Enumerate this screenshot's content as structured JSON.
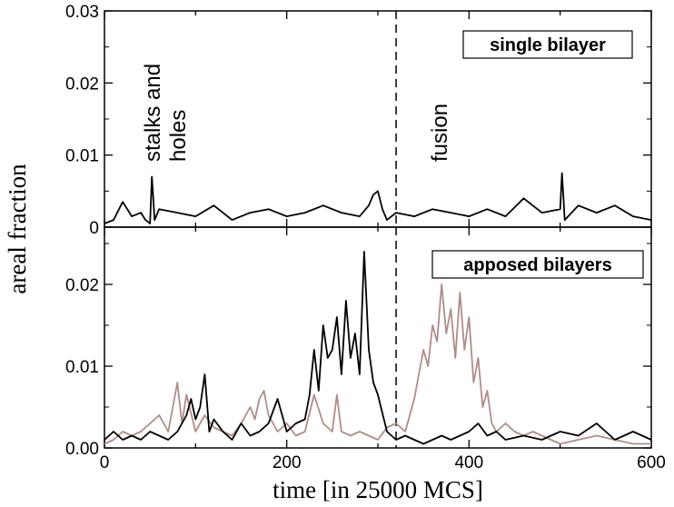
{
  "chart_data": [
    {
      "type": "line",
      "panel": "top",
      "label": "single bilayer",
      "ylim": [
        0,
        0.03
      ],
      "xlim": [
        0,
        600
      ],
      "yticks": [
        {
          "v": 0.03,
          "label": "0.03"
        },
        {
          "v": 0.02,
          "label": "0.02"
        },
        {
          "v": 0.01,
          "label": "0.01"
        },
        {
          "v": 0,
          "label": "0"
        }
      ],
      "annotations": [
        {
          "lines": [
            "stalks and",
            "holes"
          ],
          "x": 55
        },
        {
          "lines": [
            "fusion"
          ],
          "x": 370
        }
      ],
      "vline_x": 320,
      "series": [
        {
          "color": "#000000",
          "x": [
            0,
            10,
            20,
            30,
            40,
            45,
            50,
            52,
            55,
            60,
            80,
            100,
            120,
            140,
            160,
            180,
            200,
            220,
            240,
            260,
            280,
            290,
            295,
            300,
            305,
            310,
            320,
            340,
            360,
            380,
            400,
            420,
            440,
            460,
            480,
            500,
            502,
            505,
            520,
            540,
            560,
            580,
            600
          ],
          "y": [
            0.0005,
            0.001,
            0.0035,
            0.0015,
            0.002,
            0.001,
            0.0005,
            0.007,
            0.001,
            0.0025,
            0.002,
            0.0015,
            0.003,
            0.001,
            0.002,
            0.0025,
            0.0015,
            0.002,
            0.003,
            0.002,
            0.0015,
            0.003,
            0.0045,
            0.005,
            0.0025,
            0.001,
            0.002,
            0.0015,
            0.0025,
            0.002,
            0.0015,
            0.0025,
            0.0015,
            0.004,
            0.002,
            0.0025,
            0.0075,
            0.001,
            0.003,
            0.002,
            0.003,
            0.0015,
            0.001
          ]
        }
      ]
    },
    {
      "type": "line",
      "panel": "bottom",
      "label": "apposed bilayers",
      "ylim": [
        0,
        0.027
      ],
      "xlim": [
        0,
        600
      ],
      "xlabel": "time [in 25000 MCS]",
      "ylabel": "areal fraction",
      "xticks": [
        {
          "v": 0,
          "label": "0"
        },
        {
          "v": 200,
          "label": "200"
        },
        {
          "v": 400,
          "label": "400"
        },
        {
          "v": 600,
          "label": "600"
        }
      ],
      "yticks": [
        {
          "v": 0.02,
          "label": "0.02"
        },
        {
          "v": 0.01,
          "label": "0.01"
        },
        {
          "v": 0,
          "label": "0.00"
        }
      ],
      "vline_x": 320,
      "series": [
        {
          "color": "#b08c88",
          "x": [
            0,
            10,
            20,
            30,
            40,
            50,
            60,
            70,
            80,
            85,
            90,
            100,
            110,
            120,
            130,
            140,
            150,
            160,
            165,
            170,
            175,
            180,
            190,
            200,
            210,
            220,
            230,
            240,
            250,
            255,
            260,
            270,
            280,
            290,
            300,
            310,
            320,
            330,
            340,
            345,
            350,
            355,
            360,
            365,
            370,
            375,
            380,
            385,
            390,
            395,
            400,
            405,
            410,
            415,
            420,
            425,
            430,
            440,
            450,
            460,
            470,
            480,
            490,
            500,
            520,
            540,
            560,
            580,
            600
          ],
          "y": [
            0.0005,
            0.001,
            0.002,
            0.0015,
            0.002,
            0.003,
            0.004,
            0.002,
            0.008,
            0.003,
            0.0065,
            0.002,
            0.004,
            0.0025,
            0.002,
            0.0015,
            0.003,
            0.005,
            0.0035,
            0.006,
            0.007,
            0.004,
            0.002,
            0.003,
            0.0015,
            0.002,
            0.0065,
            0.003,
            0.002,
            0.0065,
            0.002,
            0.0015,
            0.002,
            0.0015,
            0.001,
            0.0025,
            0.003,
            0.002,
            0.006,
            0.009,
            0.012,
            0.01,
            0.015,
            0.013,
            0.02,
            0.014,
            0.017,
            0.011,
            0.019,
            0.012,
            0.016,
            0.008,
            0.011,
            0.005,
            0.007,
            0.003,
            0.002,
            0.003,
            0.002,
            0.0015,
            0.002,
            0.0015,
            0.001,
            0.0005,
            0.001,
            0.0015,
            0.001,
            0.0005,
            0.0005
          ]
        },
        {
          "color": "#000000",
          "x": [
            0,
            10,
            20,
            30,
            40,
            50,
            60,
            70,
            80,
            90,
            95,
            100,
            105,
            110,
            115,
            120,
            130,
            140,
            150,
            160,
            170,
            180,
            190,
            200,
            210,
            220,
            225,
            230,
            235,
            240,
            245,
            250,
            255,
            260,
            265,
            270,
            275,
            280,
            285,
            290,
            295,
            300,
            310,
            320,
            330,
            340,
            350,
            360,
            370,
            380,
            390,
            400,
            410,
            420,
            430,
            440,
            460,
            480,
            500,
            520,
            540,
            560,
            580,
            600
          ],
          "y": [
            0.001,
            0.002,
            0.001,
            0.0015,
            0.001,
            0.002,
            0.0015,
            0.001,
            0.002,
            0.004,
            0.006,
            0.0035,
            0.005,
            0.009,
            0.002,
            0.0035,
            0.002,
            0.001,
            0.003,
            0.0015,
            0.002,
            0.003,
            0.006,
            0.002,
            0.003,
            0.0035,
            0.0065,
            0.012,
            0.007,
            0.015,
            0.011,
            0.012,
            0.016,
            0.009,
            0.018,
            0.011,
            0.014,
            0.009,
            0.024,
            0.012,
            0.008,
            0.0065,
            0.002,
            0.001,
            0.0015,
            0.001,
            0.0005,
            0.001,
            0.0015,
            0.001,
            0.0015,
            0.002,
            0.003,
            0.0015,
            0.002,
            0.001,
            0.0015,
            0.001,
            0.002,
            0.0015,
            0.003,
            0.001,
            0.002,
            0.001
          ]
        }
      ]
    }
  ]
}
